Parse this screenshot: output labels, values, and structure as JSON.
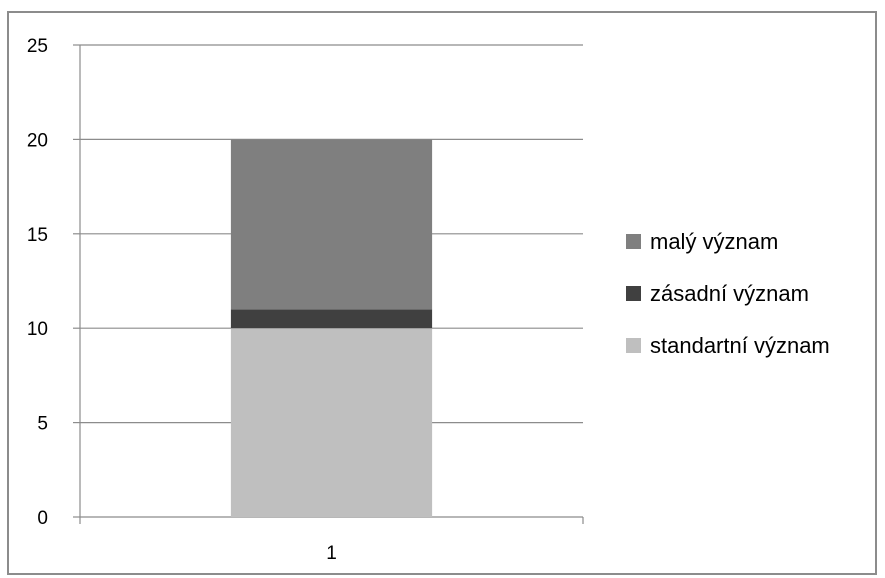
{
  "chart_data": {
    "type": "bar",
    "stacked": true,
    "categories": [
      "1"
    ],
    "series": [
      {
        "name": "standartní význam",
        "values": [
          10
        ],
        "color": "#bfbfbf"
      },
      {
        "name": "zásadní význam",
        "values": [
          1
        ],
        "color": "#404040"
      },
      {
        "name": "malý význam",
        "values": [
          9
        ],
        "color": "#7f7f7f"
      }
    ],
    "legend_order": [
      "malý význam",
      "zásadní význam",
      "standartní význam"
    ],
    "ylim": [
      0,
      25
    ],
    "yticks": [
      "0",
      "5",
      "10",
      "15",
      "20",
      "25"
    ],
    "grid": true,
    "legend_position": "right",
    "title": "",
    "xlabel": "",
    "ylabel": ""
  },
  "colors": {
    "gridline": "#8c8c8c",
    "axis": "#8c8c8c",
    "frame": "#8c8c8c"
  }
}
